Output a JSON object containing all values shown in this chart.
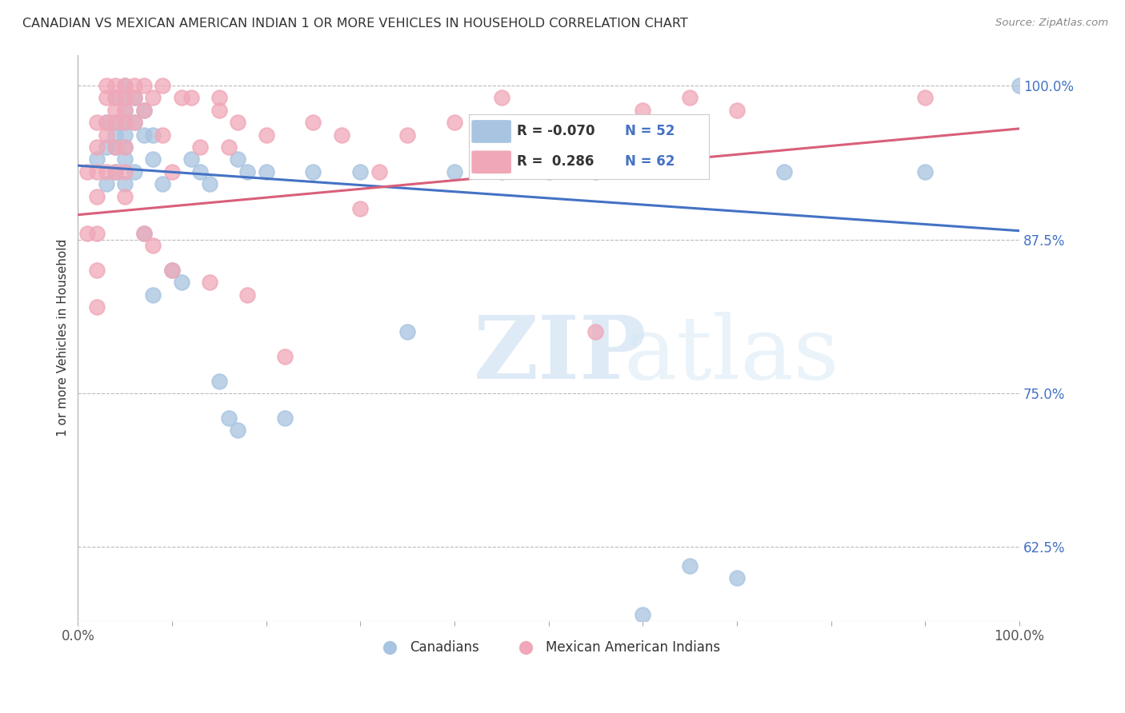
{
  "title": "CANADIAN VS MEXICAN AMERICAN INDIAN 1 OR MORE VEHICLES IN HOUSEHOLD CORRELATION CHART",
  "source": "Source: ZipAtlas.com",
  "ylabel": "1 or more Vehicles in Household",
  "watermark_zip": "ZIP",
  "watermark_atlas": "atlas",
  "blue_label": "Canadians",
  "pink_label": "Mexican American Indians",
  "blue_R": -0.07,
  "blue_N": 52,
  "pink_R": 0.286,
  "pink_N": 62,
  "blue_color": "#a8c4e0",
  "pink_color": "#f0a8b8",
  "blue_line_color": "#4472c4",
  "pink_line_color": "#d95f7a",
  "title_color": "#333333",
  "source_color": "#888888",
  "axis_label_color": "#333333",
  "tick_color_right": "#4472c4",
  "tick_color_bottom": "#555555",
  "grid_color": "#bbbbbb",
  "background_color": "#ffffff",
  "xlim": [
    0.0,
    1.0
  ],
  "ylim": [
    0.565,
    1.025
  ],
  "yticks": [
    0.625,
    0.75,
    0.875,
    1.0
  ],
  "ytick_labels": [
    "62.5%",
    "75.0%",
    "87.5%",
    "100.0%"
  ],
  "blue_line_x0": 0.0,
  "blue_line_y0": 0.935,
  "blue_line_x1": 1.0,
  "blue_line_y1": 0.882,
  "pink_line_x0": 0.0,
  "pink_line_y0": 0.895,
  "pink_line_x1": 1.0,
  "pink_line_y1": 0.965,
  "blue_x": [
    0.02,
    0.03,
    0.03,
    0.03,
    0.04,
    0.04,
    0.04,
    0.04,
    0.04,
    0.05,
    0.05,
    0.05,
    0.05,
    0.05,
    0.05,
    0.05,
    0.05,
    0.06,
    0.06,
    0.06,
    0.07,
    0.07,
    0.07,
    0.08,
    0.08,
    0.08,
    0.09,
    0.1,
    0.11,
    0.12,
    0.13,
    0.14,
    0.15,
    0.16,
    0.17,
    0.17,
    0.18,
    0.2,
    0.22,
    0.25,
    0.3,
    0.35,
    0.4,
    0.45,
    0.5,
    0.55,
    0.6,
    0.65,
    0.7,
    0.75,
    0.9,
    1.0
  ],
  "blue_y": [
    0.94,
    0.97,
    0.95,
    0.92,
    0.99,
    0.97,
    0.96,
    0.95,
    0.93,
    1.0,
    0.99,
    0.98,
    0.97,
    0.96,
    0.95,
    0.94,
    0.92,
    0.99,
    0.97,
    0.93,
    0.98,
    0.96,
    0.88,
    0.96,
    0.94,
    0.83,
    0.92,
    0.85,
    0.84,
    0.94,
    0.93,
    0.92,
    0.76,
    0.73,
    0.94,
    0.72,
    0.93,
    0.93,
    0.73,
    0.93,
    0.93,
    0.8,
    0.93,
    0.93,
    0.93,
    0.93,
    0.57,
    0.61,
    0.6,
    0.93,
    0.93,
    1.0
  ],
  "pink_x": [
    0.01,
    0.01,
    0.02,
    0.02,
    0.02,
    0.02,
    0.02,
    0.02,
    0.02,
    0.03,
    0.03,
    0.03,
    0.03,
    0.03,
    0.04,
    0.04,
    0.04,
    0.04,
    0.04,
    0.04,
    0.05,
    0.05,
    0.05,
    0.05,
    0.05,
    0.05,
    0.05,
    0.06,
    0.06,
    0.06,
    0.07,
    0.07,
    0.07,
    0.08,
    0.08,
    0.09,
    0.09,
    0.1,
    0.1,
    0.11,
    0.12,
    0.13,
    0.14,
    0.15,
    0.15,
    0.16,
    0.17,
    0.18,
    0.2,
    0.22,
    0.25,
    0.28,
    0.3,
    0.32,
    0.35,
    0.4,
    0.45,
    0.55,
    0.6,
    0.65,
    0.7,
    0.9
  ],
  "pink_y": [
    0.93,
    0.88,
    0.97,
    0.95,
    0.93,
    0.91,
    0.88,
    0.85,
    0.82,
    1.0,
    0.99,
    0.97,
    0.96,
    0.93,
    1.0,
    0.99,
    0.98,
    0.97,
    0.95,
    0.93,
    1.0,
    0.99,
    0.98,
    0.97,
    0.95,
    0.93,
    0.91,
    1.0,
    0.99,
    0.97,
    1.0,
    0.98,
    0.88,
    0.99,
    0.87,
    1.0,
    0.96,
    0.93,
    0.85,
    0.99,
    0.99,
    0.95,
    0.84,
    0.99,
    0.98,
    0.95,
    0.97,
    0.83,
    0.96,
    0.78,
    0.97,
    0.96,
    0.9,
    0.93,
    0.96,
    0.97,
    0.99,
    0.8,
    0.98,
    0.99,
    0.98,
    0.99
  ]
}
